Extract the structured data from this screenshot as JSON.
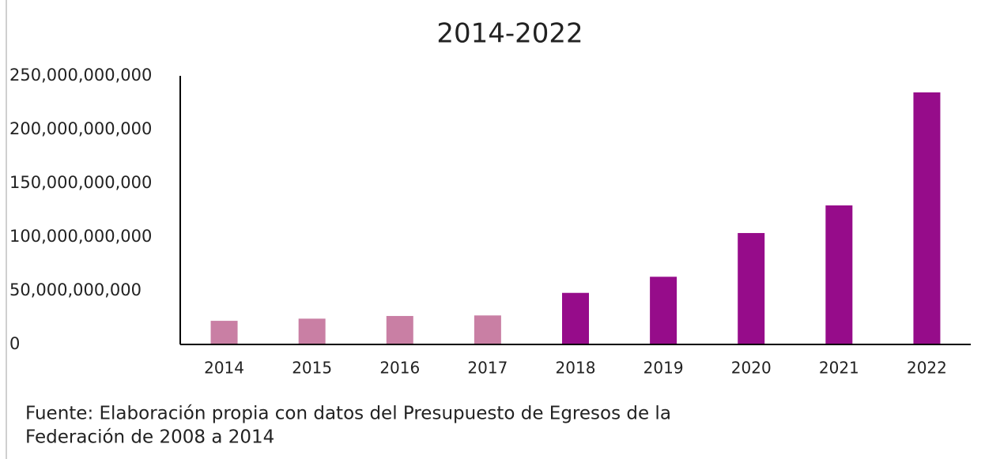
{
  "chart_data": {
    "type": "bar",
    "title": "2014-2022",
    "categories": [
      "2014",
      "2015",
      "2016",
      "2017",
      "2018",
      "2019",
      "2020",
      "2021",
      "2022"
    ],
    "values": [
      22000000000,
      24000000000,
      26500000000,
      27000000000,
      48000000000,
      63000000000,
      103700000000,
      129400000000,
      234600000000
    ],
    "colors": [
      "#c97fa4",
      "#c97fa4",
      "#c97fa4",
      "#c97fa4",
      "#960c8a",
      "#960c8a",
      "#960c8a",
      "#960c8a",
      "#960c8a"
    ],
    "ylim": [
      0,
      250000000000
    ],
    "yticks": [
      0,
      {
        "value": 50000000000,
        "label": "50,000,000,000"
      },
      {
        "value": 100000000000,
        "label": "100,000,000,000"
      },
      {
        "value": 150000000000,
        "label": "150,000,000,000"
      },
      {
        "value": 200000000000,
        "label": "200,000,000,000"
      },
      {
        "value": 250000000000,
        "label": "250,000,000,000"
      }
    ],
    "grid": false,
    "source": [
      "Fuente: Elaboración propia con datos del Presupuesto de Egresos de la",
      "Federación de 2008 a 2014"
    ]
  }
}
